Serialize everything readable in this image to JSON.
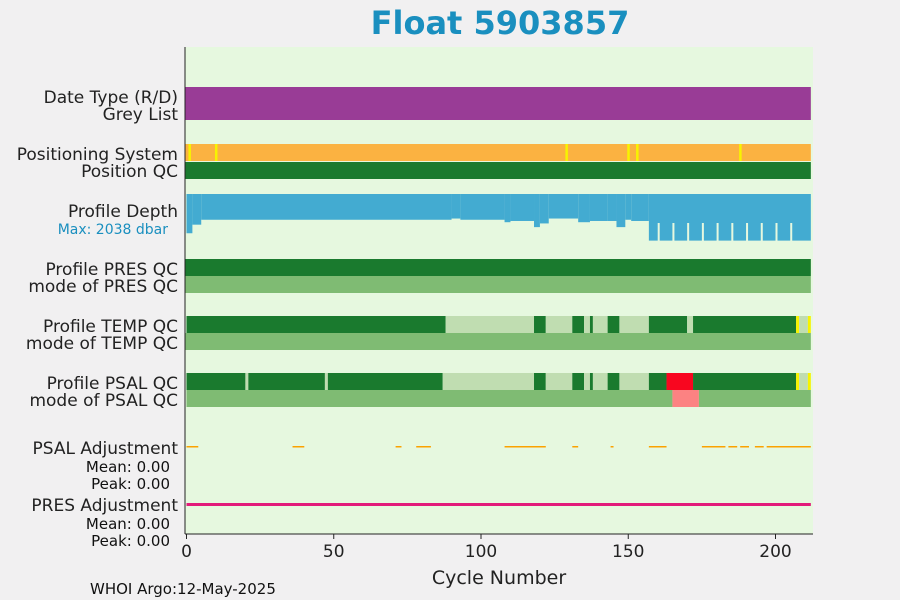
{
  "title": "Float 5903857",
  "footer": "WHOI Argo:12-May-2025",
  "colors": {
    "title": "#1a8fbf",
    "panel_bg": "#e6f8df",
    "date_type": "#993c96",
    "positioning": "#fbb241",
    "pos_marker": "#f7f300",
    "qc_good": "#1a7a2e",
    "qc_mode": "#7fbb73",
    "qc_light": "#c0ddb1",
    "qc_bad": "#f8061f",
    "qc_bad_mode": "#fc8282",
    "depth": "#43abd1",
    "psal_adj": "#fba200",
    "pres_adj": "#e21a7a",
    "max_label": "#1a8fbf"
  },
  "rows": {
    "date_type": "Date Type (R/D)",
    "grey_list": "Grey List",
    "positioning": "Positioning System",
    "position_qc": "Position QC",
    "profile_depth": "Profile Depth",
    "max_depth": "Max: 2038 dbar",
    "pres_qc": "Profile PRES QC",
    "pres_mode": "mode of PRES QC",
    "temp_qc": "Profile TEMP QC",
    "temp_mode": "mode of TEMP QC",
    "psal_qc": "Profile PSAL QC",
    "psal_mode": "mode of PSAL QC",
    "psal_adj": "PSAL Adjustment",
    "psal_mean": "Mean: 0.00",
    "psal_peak": "Peak: 0.00",
    "pres_adj": "PRES Adjustment",
    "pres_mean": "Mean: 0.00",
    "pres_peak": "Peak: 0.00"
  },
  "chart_data": {
    "type": "heatmap",
    "xlabel": "Cycle Number",
    "xlim": [
      -0.5,
      212
    ],
    "xticks": [
      0,
      50,
      100,
      150,
      200
    ],
    "position_marks": [
      1,
      10,
      129,
      150,
      153,
      188
    ],
    "depth_steps": [
      [
        0,
        2,
        1600
      ],
      [
        2,
        5,
        1250
      ],
      [
        5,
        90,
        1050
      ],
      [
        90,
        93,
        1000
      ],
      [
        93,
        108,
        1050
      ],
      [
        108,
        110,
        1150
      ],
      [
        110,
        118,
        1100
      ],
      [
        118,
        120,
        1350
      ],
      [
        120,
        123,
        1200
      ],
      [
        123,
        133,
        1000
      ],
      [
        133,
        137,
        1150
      ],
      [
        137,
        143,
        1100
      ],
      [
        143,
        146,
        1100
      ],
      [
        146,
        149,
        1350
      ],
      [
        149,
        151,
        1050
      ],
      [
        151,
        157,
        1100
      ],
      [
        157,
        212,
        1900
      ]
    ],
    "depth_gaps": [
      160,
      165,
      170,
      175,
      180,
      185,
      190,
      195,
      200,
      205
    ],
    "temp_qc_segments": [
      [
        0,
        88,
        "good"
      ],
      [
        88,
        118,
        "light"
      ],
      [
        118,
        122,
        "good"
      ],
      [
        122,
        131,
        "light"
      ],
      [
        131,
        135,
        "good"
      ],
      [
        135,
        137,
        "light"
      ],
      [
        137,
        138,
        "good"
      ],
      [
        138,
        143,
        "light"
      ],
      [
        143,
        147,
        "good"
      ],
      [
        147,
        157,
        "light"
      ],
      [
        157,
        170,
        "good"
      ],
      [
        170,
        172,
        "light"
      ],
      [
        172,
        207,
        "good"
      ],
      [
        207,
        208,
        "yellow"
      ],
      [
        208,
        211,
        "light"
      ],
      [
        211,
        212,
        "yellow"
      ]
    ],
    "psal_qc_segments": [
      [
        0,
        20,
        "good"
      ],
      [
        20,
        21,
        "light"
      ],
      [
        21,
        47,
        "good"
      ],
      [
        47,
        48,
        "light"
      ],
      [
        48,
        87,
        "good"
      ],
      [
        87,
        118,
        "light"
      ],
      [
        118,
        122,
        "good"
      ],
      [
        122,
        131,
        "light"
      ],
      [
        131,
        135,
        "good"
      ],
      [
        135,
        137,
        "light"
      ],
      [
        137,
        138,
        "good"
      ],
      [
        138,
        143,
        "light"
      ],
      [
        143,
        147,
        "good"
      ],
      [
        147,
        157,
        "light"
      ],
      [
        157,
        163,
        "good"
      ],
      [
        163,
        172,
        "bad"
      ],
      [
        172,
        207,
        "good"
      ],
      [
        207,
        208,
        "yellow"
      ],
      [
        208,
        211,
        "light"
      ],
      [
        211,
        212,
        "yellow"
      ]
    ],
    "psal_mode_segments": [
      [
        0,
        165,
        "mode"
      ],
      [
        165,
        174,
        "badmode"
      ],
      [
        174,
        212,
        "mode"
      ]
    ],
    "psal_adj_ticks": [
      [
        0,
        4
      ],
      [
        36,
        40
      ],
      [
        71,
        73
      ],
      [
        78,
        83
      ],
      [
        108,
        118
      ],
      [
        118,
        122
      ],
      [
        131,
        133
      ],
      [
        144,
        145
      ],
      [
        157,
        163
      ],
      [
        175,
        183
      ],
      [
        184,
        187
      ],
      [
        188,
        191
      ],
      [
        193,
        196
      ],
      [
        197,
        200
      ],
      [
        200,
        212
      ]
    ]
  }
}
